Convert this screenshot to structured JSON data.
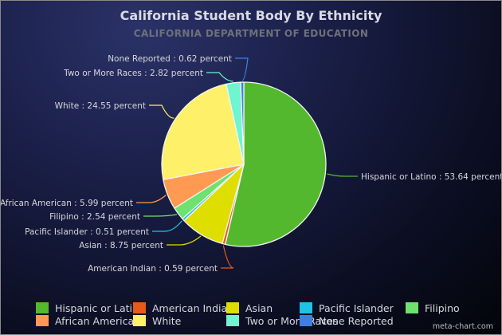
{
  "chart_data": {
    "type": "pie",
    "title": "California Student Body By Ethnicity",
    "subtitle": "CALIFORNIA DEPARTMENT OF EDUCATION",
    "slices": [
      {
        "name": "Hispanic or Latino",
        "value": 53.64,
        "color": "#54b82e",
        "label": "Hispanic or Latino : 53.64 percent"
      },
      {
        "name": "American Indian",
        "value": 0.59,
        "color": "#e85a19",
        "label": "American Indian : 0.59 percent"
      },
      {
        "name": "Asian",
        "value": 8.75,
        "color": "#dede00",
        "label": "Asian : 8.75 percent"
      },
      {
        "name": "Pacific Islander",
        "value": 0.51,
        "color": "#20c2e4",
        "label": "Pacific Islander : 0.51 percent"
      },
      {
        "name": "Filipino",
        "value": 2.54,
        "color": "#6ee26e",
        "label": "Filipino : 2.54 percent"
      },
      {
        "name": "African American",
        "value": 5.99,
        "color": "#ff9a52",
        "label": "African American : 5.99 percent"
      },
      {
        "name": "White",
        "value": 24.55,
        "color": "#fff06a",
        "label": "White : 24.55 percent"
      },
      {
        "name": "Two or More Races",
        "value": 2.82,
        "color": "#6ff5cf",
        "label": "Two or More Races : 2.82 percent"
      },
      {
        "name": "None Reported",
        "value": 0.62,
        "color": "#3f7fe0",
        "label": "None Reported : 0.62 percent"
      }
    ],
    "legend_position": "bottom"
  },
  "credit": "meta-chart.com"
}
